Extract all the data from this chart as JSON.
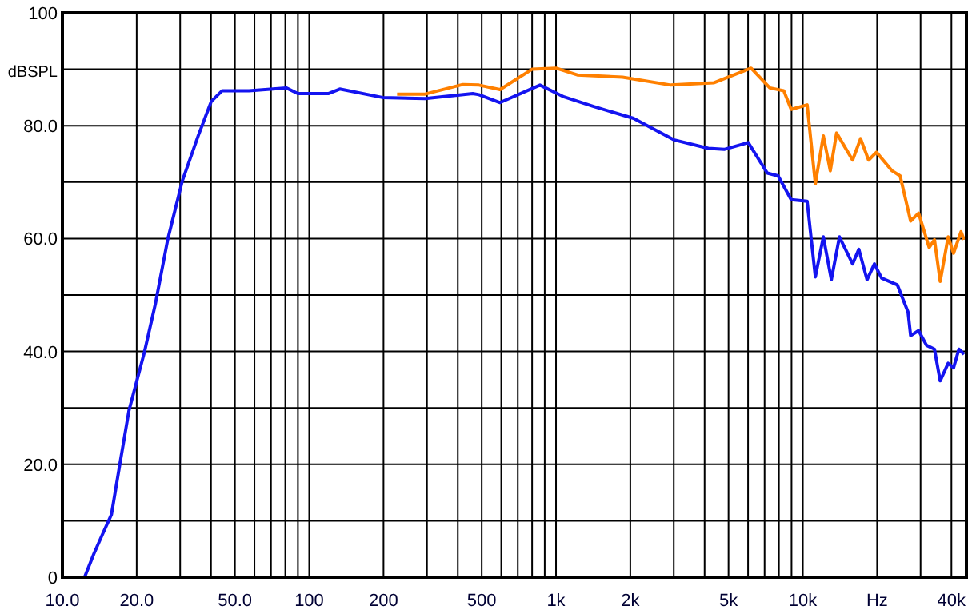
{
  "chart_data": {
    "type": "line",
    "ylabel": "dBSPL",
    "log": "x",
    "grid": true,
    "marker": "none",
    "line_style": "solid",
    "xlim": [
      10,
      46000
    ],
    "ylim": [
      0,
      100
    ],
    "xticks": [
      {
        "value": 10,
        "label": "10.0"
      },
      {
        "value": 20,
        "label": "20.0"
      },
      {
        "value": 30,
        "label": null
      },
      {
        "value": 40,
        "label": null
      },
      {
        "value": 50,
        "label": "50.0"
      },
      {
        "value": 60,
        "label": null
      },
      {
        "value": 70,
        "label": null
      },
      {
        "value": 80,
        "label": null
      },
      {
        "value": 90,
        "label": null
      },
      100,
      200,
      {
        "value": 300,
        "label": null
      },
      {
        "value": 400,
        "label": null
      },
      500,
      {
        "value": 600,
        "label": null
      },
      {
        "value": 700,
        "label": null
      },
      {
        "value": 800,
        "label": null
      },
      {
        "value": 900,
        "label": null
      },
      {
        "value": 1000,
        "label": "1k"
      },
      {
        "value": 2000,
        "label": "2k"
      },
      {
        "value": 3000,
        "label": null
      },
      {
        "value": 4000,
        "label": null
      },
      {
        "value": 5000,
        "label": "5k"
      },
      {
        "value": 6000,
        "label": null
      },
      {
        "value": 7000,
        "label": null
      },
      {
        "value": 8000,
        "label": null
      },
      {
        "value": 9000,
        "label": null
      },
      {
        "value": 10000,
        "label": "10k"
      },
      {
        "value": 20000,
        "label": "Hz"
      },
      {
        "value": 30000,
        "label": null
      },
      {
        "value": 40000,
        "label": "40k"
      }
    ],
    "yticks": [
      0,
      {
        "value": 10,
        "label": null
      },
      {
        "value": 20,
        "label": "20.0"
      },
      {
        "value": 30,
        "label": null
      },
      {
        "value": 40,
        "label": "40.0"
      },
      {
        "value": 50,
        "label": null
      },
      {
        "value": 60,
        "label": "60.0"
      },
      {
        "value": 70,
        "label": null
      },
      {
        "value": 80,
        "label": "80.0"
      },
      {
        "value": 90,
        "label": null
      },
      100
    ],
    "series": [
      {
        "color": "#1414f0",
        "x": [
          12.3,
          13.4,
          14.6,
          15.8,
          17.1,
          18.6,
          21.5,
          23.8,
          26.7,
          30.6,
          35.5,
          40.1,
          44.4,
          57,
          80.7,
          90,
          120,
          133,
          198,
          295,
          460,
          487,
          593,
          861,
          1078,
          1420,
          2060,
          3000,
          4140,
          4800,
          6010,
          7180,
          7940,
          8970,
          10410,
          11240,
          12110,
          13050,
          14070,
          15910,
          16860,
          18210,
          19500,
          20850,
          24150,
          26680,
          27340,
          29450,
          31700,
          34150,
          36020,
          38800,
          40800,
          42900,
          45000
        ],
        "values": [
          0,
          4.1,
          7.8,
          11.1,
          20.1,
          29.5,
          39.9,
          48.4,
          59.8,
          70.2,
          78.2,
          84.3,
          86.2,
          86.2,
          86.7,
          85.7,
          85.7,
          86.5,
          85,
          84.8,
          85.7,
          85.5,
          84.1,
          87.2,
          85.1,
          83.4,
          81.3,
          77.5,
          76,
          75.8,
          77,
          71.6,
          71.1,
          66.9,
          66.6,
          53.2,
          60.3,
          52.7,
          60.3,
          55.5,
          58.1,
          52.7,
          55.5,
          53,
          51.8,
          47,
          42.8,
          43.7,
          41.1,
          40.4,
          34.8,
          37.9,
          37.1,
          40.4,
          39.5
        ]
      },
      {
        "color": "#ff8000",
        "x": [
          227,
          295,
          419,
          487,
          593,
          799,
          1000,
          1220,
          1860,
          2920,
          4350,
          6170,
          7350,
          8370,
          8970,
          10410,
          11240,
          12110,
          12920,
          13700,
          15910,
          17140,
          18470,
          19880,
          23000,
          24790,
          27340,
          29450,
          32500,
          34150,
          36020,
          38800,
          40800,
          43750,
          45000
        ],
        "values": [
          85.6,
          85.6,
          87.3,
          87.2,
          86.4,
          90,
          90.2,
          89,
          88.6,
          87.2,
          87.6,
          90.2,
          86.7,
          86.2,
          82.9,
          83.7,
          69.7,
          78.2,
          72,
          78.7,
          73.9,
          77.7,
          73.9,
          75.3,
          72,
          71.1,
          63.1,
          64.5,
          58.4,
          59.8,
          52.4,
          60.3,
          57.4,
          61.2,
          59.8
        ]
      }
    ]
  }
}
